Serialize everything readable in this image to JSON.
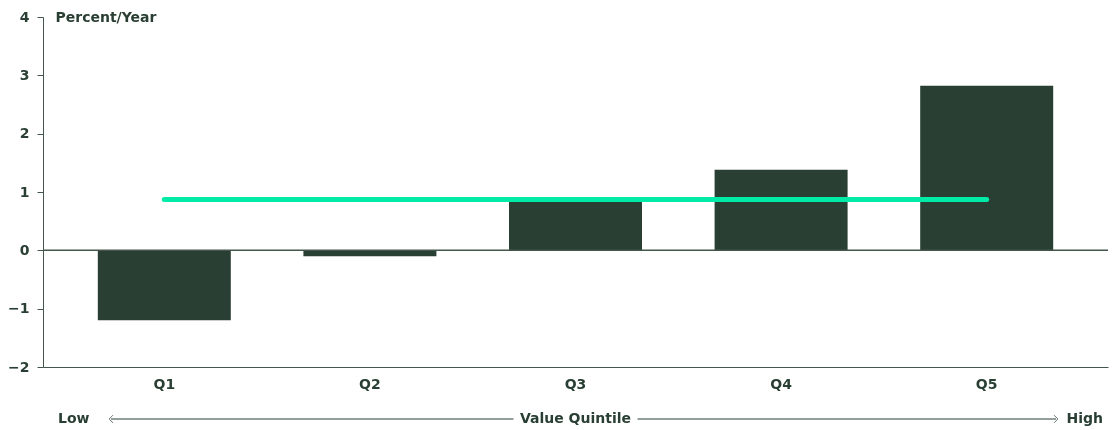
{
  "chart_data": {
    "type": "bar",
    "ylabel": "Percent/Year",
    "xlabel": "Value Quintile",
    "annotations": [
      "Low",
      "High"
    ],
    "categories": [
      "Q1",
      "Q2",
      "Q3",
      "Q4",
      "Q5"
    ],
    "series": [
      {
        "color": "#2a3f33",
        "values": [
          -1.2,
          -0.1,
          0.83,
          1.38,
          2.82
        ]
      },
      {
        "type": "line",
        "color": "#00eaa8",
        "values": [
          0.87,
          0.87,
          0.87,
          0.87,
          0.87
        ]
      }
    ],
    "ylim": [
      -2,
      4
    ],
    "yticks": [
      -2,
      -1,
      0,
      1,
      2,
      3,
      4
    ],
    "ref_lines": [
      {
        "axis": "y",
        "value": 0,
        "color": "#44564c"
      }
    ],
    "grid": false
  }
}
